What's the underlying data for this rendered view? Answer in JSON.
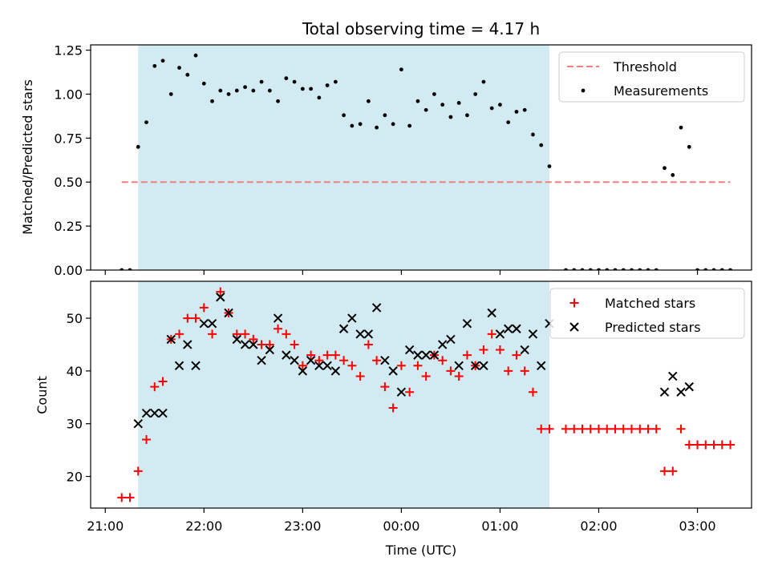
{
  "chart_data": [
    {
      "type": "scatter",
      "title": "Total observing time = 4.17 h",
      "xlabel": "",
      "ylabel": "Matched/Predicted stars",
      "ylim": [
        0,
        1.28
      ],
      "yticks": [
        "0.00",
        "0.25",
        "0.50",
        "0.75",
        "1.00",
        "1.25"
      ],
      "shaded_region": [
        "21:20",
        "01:30"
      ],
      "legend_position": "top-right",
      "threshold": {
        "name": "Threshold",
        "value": 0.5,
        "x_start": "21:10",
        "x_end": "03:20",
        "color": "#f08080"
      },
      "series": [
        {
          "name": "Measurements",
          "color": "#000000",
          "marker": "dot",
          "points": [
            [
              "21:10",
              0.0
            ],
            [
              "21:15",
              0.0
            ],
            [
              "21:20",
              0.7
            ],
            [
              "21:25",
              0.84
            ],
            [
              "21:30",
              1.16
            ],
            [
              "21:35",
              1.19
            ],
            [
              "21:40",
              1.0
            ],
            [
              "21:45",
              1.15
            ],
            [
              "21:50",
              1.11
            ],
            [
              "21:55",
              1.22
            ],
            [
              "22:00",
              1.06
            ],
            [
              "22:05",
              0.96
            ],
            [
              "22:10",
              1.02
            ],
            [
              "22:15",
              1.0
            ],
            [
              "22:20",
              1.02
            ],
            [
              "22:25",
              1.04
            ],
            [
              "22:30",
              1.02
            ],
            [
              "22:35",
              1.07
            ],
            [
              "22:40",
              1.02
            ],
            [
              "22:45",
              0.96
            ],
            [
              "22:50",
              1.09
            ],
            [
              "22:55",
              1.07
            ],
            [
              "23:00",
              1.03
            ],
            [
              "23:05",
              1.03
            ],
            [
              "23:10",
              0.98
            ],
            [
              "23:15",
              1.05
            ],
            [
              "23:20",
              1.07
            ],
            [
              "23:25",
              0.88
            ],
            [
              "23:30",
              0.82
            ],
            [
              "23:35",
              0.83
            ],
            [
              "23:40",
              0.96
            ],
            [
              "23:45",
              0.81
            ],
            [
              "23:50",
              0.88
            ],
            [
              "23:55",
              0.83
            ],
            [
              "00:00",
              1.14
            ],
            [
              "00:05",
              0.82
            ],
            [
              "00:10",
              0.96
            ],
            [
              "00:15",
              0.91
            ],
            [
              "00:20",
              1.0
            ],
            [
              "00:25",
              0.94
            ],
            [
              "00:30",
              0.87
            ],
            [
              "00:35",
              0.95
            ],
            [
              "00:40",
              0.88
            ],
            [
              "00:45",
              1.0
            ],
            [
              "00:50",
              1.07
            ],
            [
              "00:55",
              0.92
            ],
            [
              "01:00",
              0.94
            ],
            [
              "01:05",
              0.84
            ],
            [
              "01:10",
              0.9
            ],
            [
              "01:15",
              0.91
            ],
            [
              "01:20",
              0.77
            ],
            [
              "01:25",
              0.71
            ],
            [
              "01:30",
              0.59
            ],
            [
              "01:40",
              0.0
            ],
            [
              "01:45",
              0.0
            ],
            [
              "01:50",
              0.0
            ],
            [
              "01:55",
              0.0
            ],
            [
              "02:00",
              0.0
            ],
            [
              "02:05",
              0.0
            ],
            [
              "02:10",
              0.0
            ],
            [
              "02:15",
              0.0
            ],
            [
              "02:20",
              0.0
            ],
            [
              "02:25",
              0.0
            ],
            [
              "02:30",
              0.0
            ],
            [
              "02:35",
              0.0
            ],
            [
              "02:40",
              0.58
            ],
            [
              "02:45",
              0.54
            ],
            [
              "02:50",
              0.81
            ],
            [
              "02:55",
              0.7
            ],
            [
              "03:00",
              0.0
            ],
            [
              "03:05",
              0.0
            ],
            [
              "03:10",
              0.0
            ],
            [
              "03:15",
              0.0
            ],
            [
              "03:20",
              0.0
            ]
          ]
        }
      ]
    },
    {
      "type": "scatter",
      "title": "",
      "xlabel": "Time (UTC)",
      "ylabel": "Count",
      "ylim": [
        14,
        57
      ],
      "yticks": [
        "20",
        "30",
        "40",
        "50"
      ],
      "xticks": [
        "21:00",
        "22:00",
        "23:00",
        "00:00",
        "01:00",
        "02:00",
        "03:00"
      ],
      "shaded_region": [
        "21:20",
        "01:30"
      ],
      "legend_position": "top-right",
      "series": [
        {
          "name": "Matched stars",
          "color": "#ff0000",
          "marker": "plus",
          "points": [
            [
              "21:10",
              16
            ],
            [
              "21:15",
              16
            ],
            [
              "21:20",
              21
            ],
            [
              "21:25",
              27
            ],
            [
              "21:30",
              37
            ],
            [
              "21:35",
              38
            ],
            [
              "21:40",
              46
            ],
            [
              "21:45",
              47
            ],
            [
              "21:50",
              50
            ],
            [
              "21:55",
              50
            ],
            [
              "22:00",
              52
            ],
            [
              "22:05",
              47
            ],
            [
              "22:10",
              55
            ],
            [
              "22:15",
              51
            ],
            [
              "22:20",
              47
            ],
            [
              "22:25",
              47
            ],
            [
              "22:30",
              46
            ],
            [
              "22:35",
              45
            ],
            [
              "22:40",
              45
            ],
            [
              "22:45",
              48
            ],
            [
              "22:50",
              47
            ],
            [
              "22:55",
              45
            ],
            [
              "23:00",
              41
            ],
            [
              "23:05",
              43
            ],
            [
              "23:10",
              42
            ],
            [
              "23:15",
              43
            ],
            [
              "23:20",
              43
            ],
            [
              "23:25",
              42
            ],
            [
              "23:30",
              41
            ],
            [
              "23:35",
              39
            ],
            [
              "23:40",
              45
            ],
            [
              "23:45",
              42
            ],
            [
              "23:50",
              37
            ],
            [
              "23:55",
              33
            ],
            [
              "00:00",
              41
            ],
            [
              "00:05",
              36
            ],
            [
              "00:10",
              41
            ],
            [
              "00:15",
              39
            ],
            [
              "00:20",
              43
            ],
            [
              "00:25",
              42
            ],
            [
              "00:30",
              40
            ],
            [
              "00:35",
              39
            ],
            [
              "00:40",
              43
            ],
            [
              "00:45",
              41
            ],
            [
              "00:50",
              44
            ],
            [
              "00:55",
              47
            ],
            [
              "01:00",
              44
            ],
            [
              "01:05",
              40
            ],
            [
              "01:10",
              43
            ],
            [
              "01:15",
              40
            ],
            [
              "01:20",
              36
            ],
            [
              "01:25",
              29
            ],
            [
              "01:30",
              29
            ],
            [
              "01:40",
              29
            ],
            [
              "01:45",
              29
            ],
            [
              "01:50",
              29
            ],
            [
              "01:55",
              29
            ],
            [
              "02:00",
              29
            ],
            [
              "02:05",
              29
            ],
            [
              "02:10",
              29
            ],
            [
              "02:15",
              29
            ],
            [
              "02:20",
              29
            ],
            [
              "02:25",
              29
            ],
            [
              "02:30",
              29
            ],
            [
              "02:35",
              29
            ],
            [
              "02:40",
              21
            ],
            [
              "02:45",
              21
            ],
            [
              "02:50",
              29
            ],
            [
              "02:55",
              26
            ],
            [
              "03:00",
              26
            ],
            [
              "03:05",
              26
            ],
            [
              "03:10",
              26
            ],
            [
              "03:15",
              26
            ],
            [
              "03:20",
              26
            ]
          ]
        },
        {
          "name": "Predicted stars",
          "color": "#000000",
          "marker": "x",
          "points": [
            [
              "21:20",
              30
            ],
            [
              "21:25",
              32
            ],
            [
              "21:30",
              32
            ],
            [
              "21:35",
              32
            ],
            [
              "21:40",
              46
            ],
            [
              "21:45",
              41
            ],
            [
              "21:50",
              45
            ],
            [
              "21:55",
              41
            ],
            [
              "22:00",
              49
            ],
            [
              "22:05",
              49
            ],
            [
              "22:10",
              54
            ],
            [
              "22:15",
              51
            ],
            [
              "22:20",
              46
            ],
            [
              "22:25",
              45
            ],
            [
              "22:30",
              45
            ],
            [
              "22:35",
              42
            ],
            [
              "22:40",
              44
            ],
            [
              "22:45",
              50
            ],
            [
              "22:50",
              43
            ],
            [
              "22:55",
              42
            ],
            [
              "23:00",
              40
            ],
            [
              "23:05",
              42
            ],
            [
              "23:10",
              41
            ],
            [
              "23:15",
              41
            ],
            [
              "23:20",
              40
            ],
            [
              "23:25",
              48
            ],
            [
              "23:30",
              50
            ],
            [
              "23:35",
              47
            ],
            [
              "23:40",
              47
            ],
            [
              "23:45",
              52
            ],
            [
              "23:50",
              42
            ],
            [
              "23:55",
              40
            ],
            [
              "00:00",
              36
            ],
            [
              "00:05",
              44
            ],
            [
              "00:10",
              43
            ],
            [
              "00:15",
              43
            ],
            [
              "00:20",
              43
            ],
            [
              "00:25",
              45
            ],
            [
              "00:30",
              46
            ],
            [
              "00:35",
              41
            ],
            [
              "00:40",
              49
            ],
            [
              "00:45",
              41
            ],
            [
              "00:50",
              41
            ],
            [
              "00:55",
              51
            ],
            [
              "01:00",
              47
            ],
            [
              "01:05",
              48
            ],
            [
              "01:10",
              48
            ],
            [
              "01:15",
              44
            ],
            [
              "01:20",
              47
            ],
            [
              "01:25",
              41
            ],
            [
              "01:30",
              49
            ],
            [
              "02:40",
              36
            ],
            [
              "02:45",
              39
            ],
            [
              "02:50",
              36
            ],
            [
              "02:55",
              37
            ]
          ]
        }
      ]
    }
  ]
}
